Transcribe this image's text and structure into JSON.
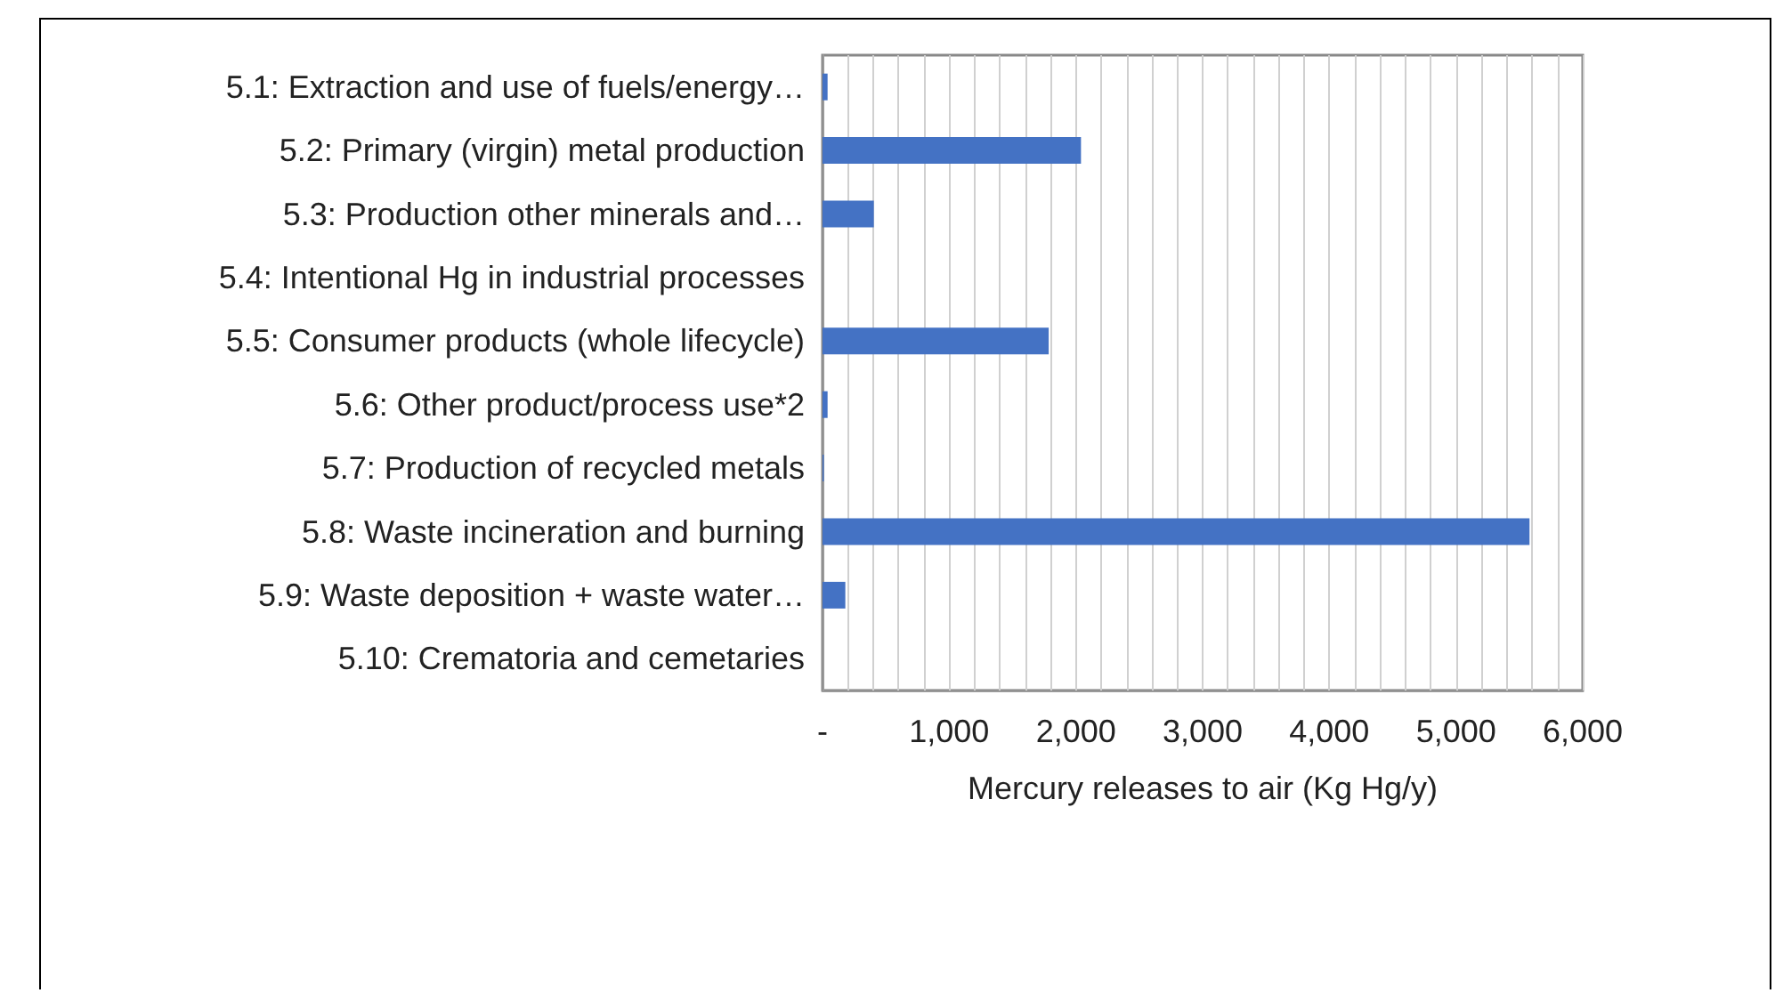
{
  "chart_data": {
    "type": "bar",
    "orientation": "horizontal",
    "xlabel": "Mercury releases to air (Kg Hg/y)",
    "categories": [
      "5.1: Extraction and use of fuels/energy…",
      "5.2: Primary (virgin) metal production",
      "5.3: Production other minerals and…",
      "5.4: Intentional Hg in industrial processes",
      "5.5: Consumer products (whole lifecycle)",
      "5.6: Other product/process use*2",
      "5.7: Production of recycled metals",
      "5.8: Waste incineration and burning",
      "5.9: Waste deposition + waste water…",
      "5.10: Crematoria and cemetaries"
    ],
    "values": [
      40,
      2040,
      405,
      0,
      1785,
      40,
      10,
      5580,
      180,
      0
    ],
    "color": "#4472c4",
    "xlim": [
      0,
      6000
    ],
    "xticks": [
      {
        "value": 0,
        "label": "-"
      },
      {
        "value": 200,
        "label": null
      },
      {
        "value": 400,
        "label": null
      },
      {
        "value": 600,
        "label": null
      },
      {
        "value": 800,
        "label": null
      },
      {
        "value": 1000,
        "label": "1,000"
      },
      {
        "value": 1200,
        "label": null
      },
      {
        "value": 1400,
        "label": null
      },
      {
        "value": 1600,
        "label": null
      },
      {
        "value": 1800,
        "label": null
      },
      {
        "value": 2000,
        "label": "2,000"
      },
      {
        "value": 2200,
        "label": null
      },
      {
        "value": 2400,
        "label": null
      },
      {
        "value": 2600,
        "label": null
      },
      {
        "value": 2800,
        "label": null
      },
      {
        "value": 3000,
        "label": "3,000"
      },
      {
        "value": 3200,
        "label": null
      },
      {
        "value": 3400,
        "label": null
      },
      {
        "value": 3600,
        "label": null
      },
      {
        "value": 3800,
        "label": null
      },
      {
        "value": 4000,
        "label": "4,000"
      },
      {
        "value": 4200,
        "label": null
      },
      {
        "value": 4400,
        "label": null
      },
      {
        "value": 4600,
        "label": null
      },
      {
        "value": 4800,
        "label": null
      },
      {
        "value": 5000,
        "label": "5,000"
      },
      {
        "value": 5200,
        "label": null
      },
      {
        "value": 5400,
        "label": null
      },
      {
        "value": 5600,
        "label": null
      },
      {
        "value": 5800,
        "label": null
      },
      {
        "value": 6000,
        "label": "6,000"
      }
    ],
    "grid": "x"
  }
}
